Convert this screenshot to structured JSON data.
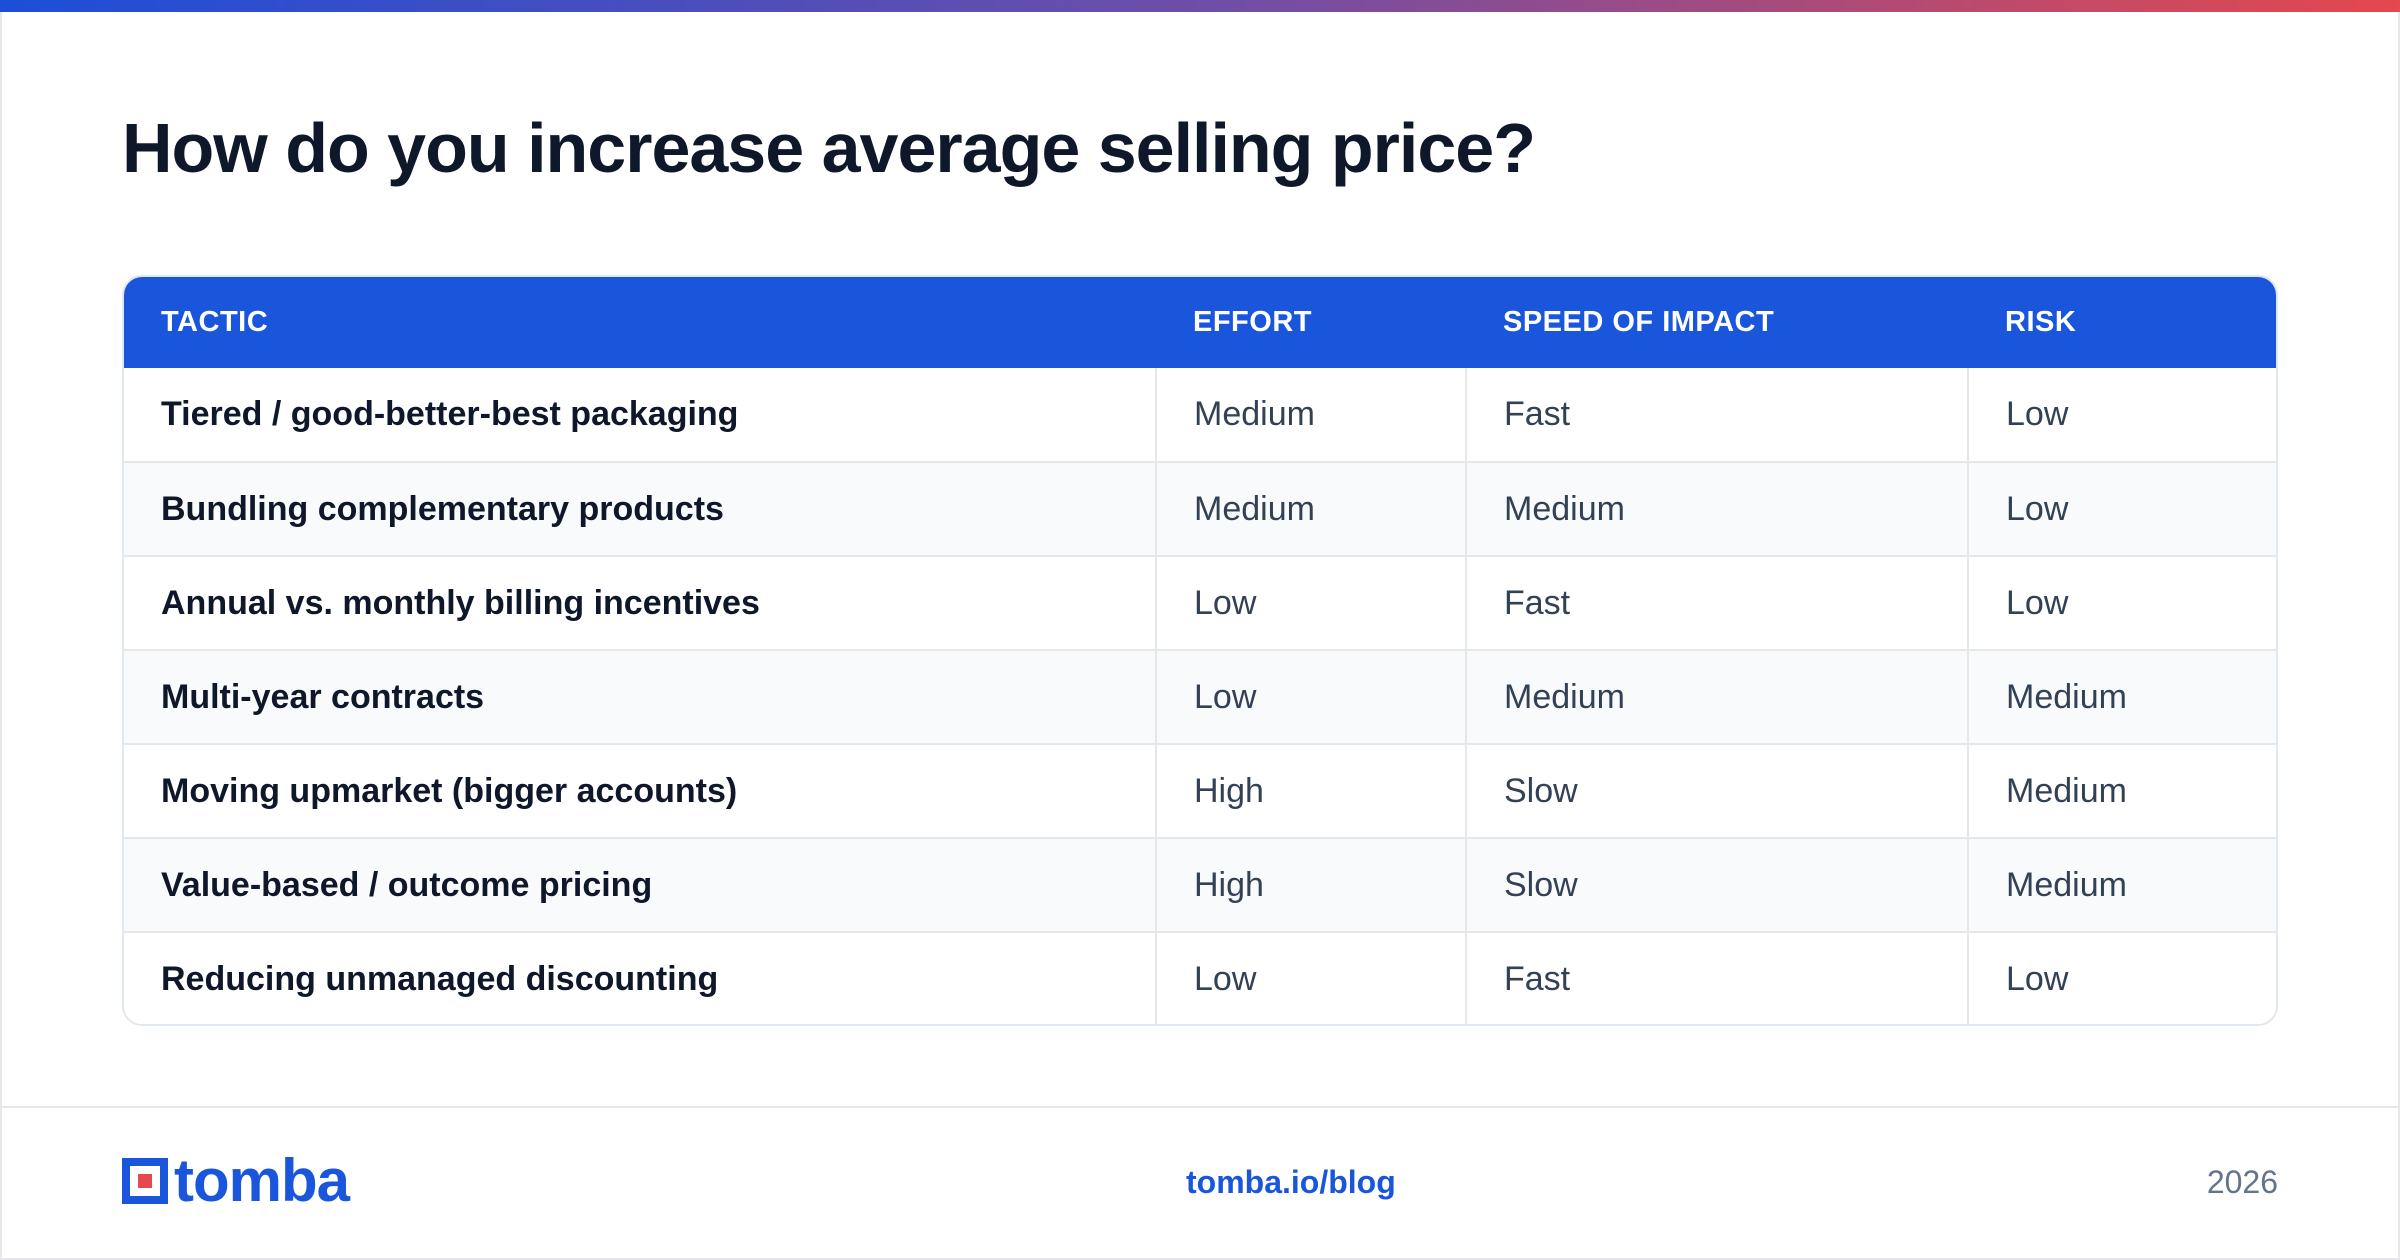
{
  "title": "How do you increase average selling price?",
  "table": {
    "headers": [
      "TACTIC",
      "EFFORT",
      "SPEED OF IMPACT",
      "RISK"
    ],
    "rows": [
      [
        "Tiered / good-better-best packaging",
        "Medium",
        "Fast",
        "Low"
      ],
      [
        "Bundling complementary products",
        "Medium",
        "Medium",
        "Low"
      ],
      [
        "Annual vs. monthly billing incentives",
        "Low",
        "Fast",
        "Low"
      ],
      [
        "Multi-year contracts",
        "Low",
        "Medium",
        "Medium"
      ],
      [
        "Moving upmarket (bigger accounts)",
        "High",
        "Slow",
        "Medium"
      ],
      [
        "Value-based / outcome pricing",
        "High",
        "Slow",
        "Medium"
      ],
      [
        "Reducing unmanaged discounting",
        "Low",
        "Fast",
        "Low"
      ]
    ]
  },
  "footer": {
    "logo_text": "tomba",
    "link": "tomba.io/blog",
    "year": "2026"
  },
  "colors": {
    "accent": "#1a56db",
    "logo_red": "#e5484d",
    "gradient_start": "#1d4ed8",
    "gradient_end": "#e5484d"
  }
}
